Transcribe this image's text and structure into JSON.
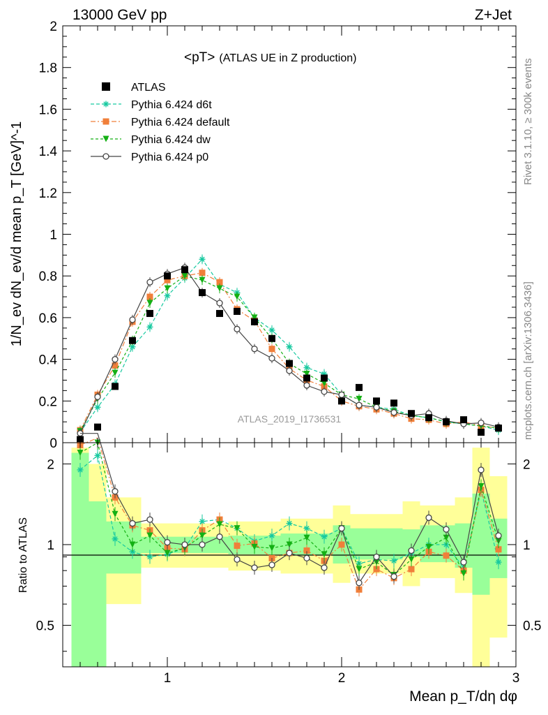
{
  "header": {
    "left": "13000 GeV pp",
    "right": "Z+Jet"
  },
  "side_labels": {
    "version": "Rivet 3.1.10, ≥ 300k events",
    "source": "mcplots.cern.ch [arXiv:1306.3436]"
  },
  "chart_data": {
    "type": "scatter",
    "title": "<pT>",
    "subtitle": "(ATLAS UE in Z production)",
    "analysis_id": "ATLAS_2019_I1736531",
    "xlabel": "Mean p_T/dη dφ",
    "xlim": [
      0.4,
      3.0
    ],
    "x_ticks": [
      "1",
      "2",
      "3"
    ],
    "main": {
      "ylabel": "1/N_ev dN_ev/d mean p_T [GeV]^-1",
      "ylim": [
        0,
        2
      ],
      "y_ticks": [
        "0",
        "0.2",
        "0.4",
        "0.6",
        "0.8",
        "1",
        "1.2",
        "1.4",
        "1.6",
        "1.8",
        "2"
      ],
      "data_x": [
        0.5,
        0.6,
        0.7,
        0.8,
        0.9,
        1.0,
        1.1,
        1.2,
        1.3,
        1.4,
        1.5,
        1.6,
        1.7,
        1.8,
        1.9,
        2.0,
        2.1,
        2.2,
        2.3,
        2.4,
        2.5,
        2.6,
        2.7,
        2.8,
        2.9
      ],
      "data_values": [
        0.015,
        0.075,
        0.27,
        0.49,
        0.62,
        0.8,
        0.83,
        0.72,
        0.62,
        0.63,
        0.58,
        0.5,
        0.38,
        0.31,
        0.31,
        0.2,
        0.265,
        0.2,
        0.19,
        0.14,
        0.12,
        0.1,
        0.11,
        0.05,
        0.07
      ],
      "x": [
        0.5,
        0.6,
        0.7,
        0.8,
        0.9,
        1.0,
        1.1,
        1.2,
        1.3,
        1.4,
        1.5,
        1.6,
        1.7,
        1.8,
        1.9,
        2.0,
        2.1,
        2.2,
        2.3,
        2.4,
        2.5,
        2.6,
        2.7,
        2.8,
        2.9
      ],
      "series": [
        {
          "name": "Pythia 6.424 d6t",
          "color": "#17c9a0",
          "marker": "asterisk",
          "dash": "5,3",
          "values": [
            0.05,
            0.17,
            0.28,
            0.46,
            0.555,
            0.705,
            0.79,
            0.88,
            0.76,
            0.72,
            0.6,
            0.54,
            0.46,
            0.36,
            0.33,
            0.23,
            0.18,
            0.17,
            0.16,
            0.13,
            0.12,
            0.1,
            0.09,
            0.08,
            0.06
          ]
        },
        {
          "name": "Pythia 6.424 default",
          "color": "#f07f3a",
          "marker": "square",
          "dash": "7,3,2,3",
          "values": [
            0.06,
            0.23,
            0.37,
            0.58,
            0.7,
            0.78,
            0.8,
            0.815,
            0.77,
            0.64,
            0.585,
            0.45,
            0.355,
            0.3,
            0.27,
            0.2,
            0.175,
            0.16,
            0.14,
            0.115,
            0.11,
            0.09,
            0.1,
            0.08,
            0.07
          ]
        },
        {
          "name": "Pythia 6.424 dw",
          "color": "#14b014",
          "marker": "triangle-down",
          "dash": "4,3",
          "values": [
            0.055,
            0.21,
            0.335,
            0.49,
            0.67,
            0.74,
            0.8,
            0.78,
            0.74,
            0.7,
            0.6,
            0.5,
            0.38,
            0.33,
            0.285,
            0.23,
            0.21,
            0.17,
            0.15,
            0.13,
            0.12,
            0.1,
            0.09,
            0.08,
            0.07
          ]
        },
        {
          "name": "Pythia 6.424 p0",
          "color": "#444444",
          "marker": "circle-open",
          "dash": "",
          "values": [
            0.045,
            0.22,
            0.4,
            0.59,
            0.77,
            0.81,
            0.84,
            0.72,
            0.67,
            0.545,
            0.45,
            0.405,
            0.345,
            0.275,
            0.245,
            0.23,
            0.18,
            0.17,
            0.145,
            0.13,
            0.14,
            0.105,
            0.09,
            0.095,
            0.075
          ]
        }
      ]
    },
    "ratio": {
      "ylabel": "Ratio to ATLAS",
      "y_ticks": [
        "0.5",
        "1",
        "2"
      ],
      "ylim_log": [
        0.35,
        2.4
      ],
      "green_band": [
        [
          0.45,
          0.55,
          0.35,
          2.2
        ],
        [
          0.55,
          0.65,
          0.35,
          1.45
        ],
        [
          0.65,
          0.85,
          0.78,
          1.22
        ],
        [
          0.85,
          1.35,
          0.93,
          1.07
        ],
        [
          1.35,
          1.65,
          0.92,
          1.08
        ],
        [
          1.65,
          1.95,
          0.91,
          1.1
        ],
        [
          1.95,
          2.05,
          0.85,
          1.18
        ],
        [
          2.05,
          2.35,
          0.88,
          1.15
        ],
        [
          2.35,
          2.45,
          0.9,
          1.14
        ],
        [
          2.45,
          2.65,
          0.86,
          1.18
        ],
        [
          2.65,
          2.75,
          0.82,
          1.2
        ],
        [
          2.75,
          2.85,
          0.65,
          1.55
        ],
        [
          2.85,
          2.95,
          0.75,
          1.25
        ]
      ],
      "yellow_band": [
        [
          0.45,
          0.55,
          0.35,
          2.3
        ],
        [
          0.55,
          0.65,
          0.35,
          2.0
        ],
        [
          0.65,
          0.85,
          0.6,
          1.5
        ],
        [
          0.85,
          1.35,
          0.82,
          1.2
        ],
        [
          1.35,
          1.65,
          0.8,
          1.22
        ],
        [
          1.65,
          1.95,
          0.78,
          1.25
        ],
        [
          1.95,
          2.05,
          0.72,
          1.4
        ],
        [
          2.05,
          2.35,
          0.78,
          1.3
        ],
        [
          2.35,
          2.45,
          0.7,
          1.45
        ],
        [
          2.45,
          2.65,
          0.75,
          1.4
        ],
        [
          2.65,
          2.75,
          0.66,
          1.5
        ],
        [
          2.75,
          2.85,
          0.35,
          2.3
        ],
        [
          2.85,
          2.95,
          0.45,
          1.8
        ]
      ],
      "series": [
        {
          "name": "Pythia 6.424 d6t",
          "values": [
            1.9,
            2.15,
            1.05,
            0.94,
            0.9,
            0.92,
            0.97,
            1.22,
            1.24,
            1.15,
            1.03,
            1.08,
            1.2,
            1.15,
            1.07,
            1.15,
            0.85,
            0.88,
            0.87,
            0.93,
            1.0,
            1.0,
            0.82,
            1.6,
            0.86
          ]
        },
        {
          "name": "Pythia 6.424 default",
          "values": [
            2.35,
            2.5,
            1.5,
            1.18,
            1.13,
            0.97,
            0.96,
            1.13,
            1.24,
            0.99,
            1.01,
            0.89,
            0.93,
            0.95,
            0.87,
            1.0,
            0.68,
            0.81,
            0.75,
            0.81,
            0.94,
            0.91,
            0.8,
            1.6,
            0.96
          ]
        },
        {
          "name": "Pythia 6.424 dw",
          "values": [
            2.2,
            2.4,
            1.3,
            1.0,
            1.08,
            0.93,
            0.97,
            1.08,
            1.19,
            1.15,
            0.98,
            0.97,
            1.0,
            1.06,
            0.92,
            1.15,
            0.81,
            0.86,
            0.77,
            0.88,
            0.98,
            1.06,
            0.78,
            1.65,
            1.03
          ]
        },
        {
          "name": "Pythia 6.424 p0",
          "values": [
            2.6,
            2.6,
            1.58,
            1.2,
            1.24,
            1.02,
            1.0,
            1.0,
            1.07,
            0.88,
            0.82,
            0.84,
            0.93,
            0.89,
            0.82,
            1.15,
            0.72,
            0.9,
            0.76,
            0.95,
            1.26,
            1.14,
            0.86,
            1.9,
            1.08
          ]
        }
      ]
    },
    "legend": {
      "data_label": "ATLAS",
      "entries": [
        "Pythia 6.424 d6t",
        "Pythia 6.424 default",
        "Pythia 6.424 dw",
        "Pythia 6.424 p0"
      ],
      "position": "top-left"
    }
  }
}
